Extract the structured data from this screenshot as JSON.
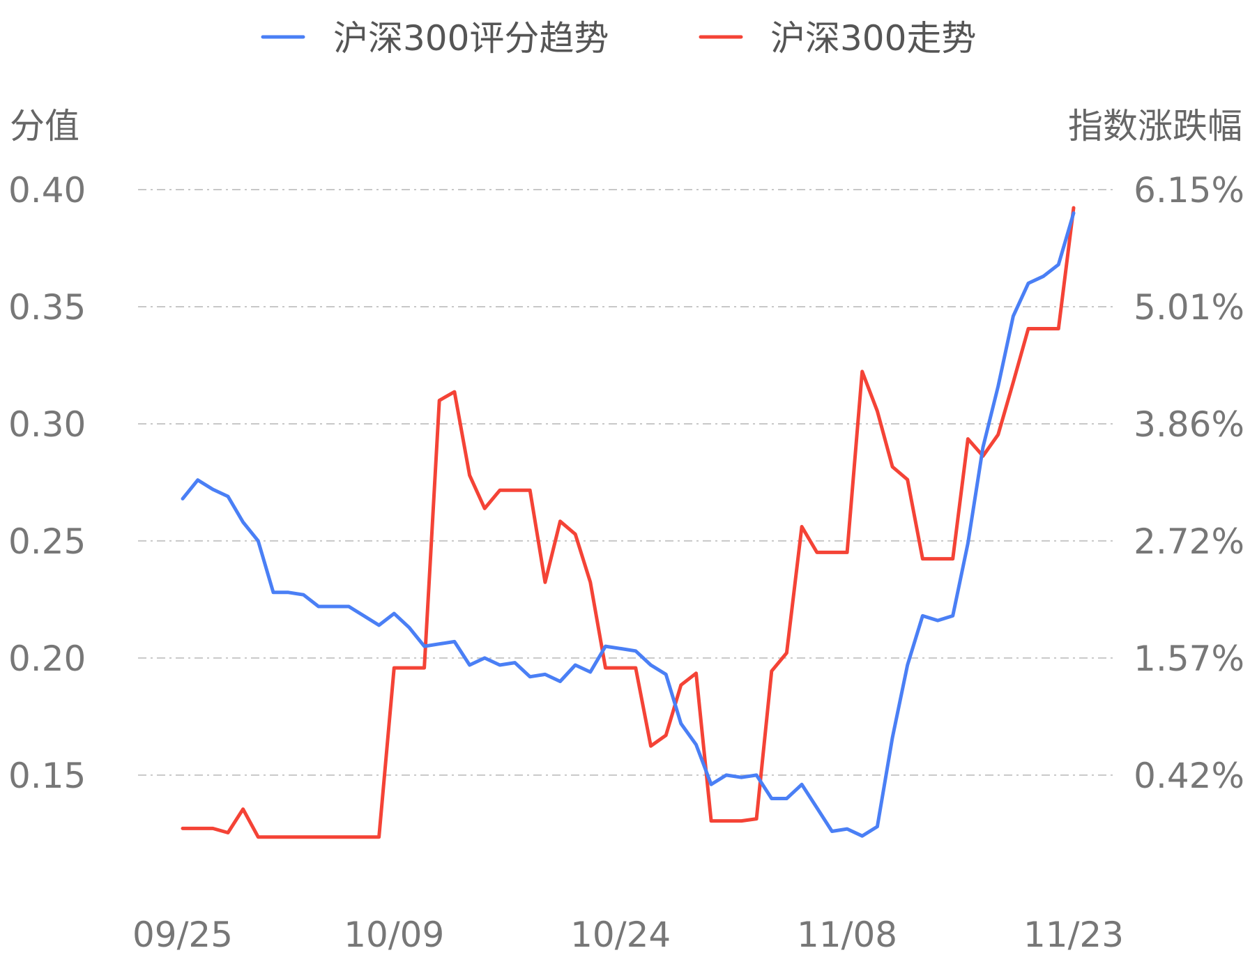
{
  "chart_data": {
    "type": "line",
    "legend": {
      "position": "top"
    },
    "grid": true,
    "series": [
      {
        "name": "沪深300评分趋势",
        "axis": "left",
        "color": "#4a7ff5",
        "values": [
          0.268,
          0.276,
          0.272,
          0.269,
          0.258,
          0.25,
          0.228,
          0.228,
          0.227,
          0.222,
          0.222,
          0.222,
          0.218,
          0.214,
          0.219,
          0.213,
          0.205,
          0.206,
          0.207,
          0.197,
          0.2,
          0.197,
          0.198,
          0.192,
          0.193,
          0.19,
          0.197,
          0.194,
          0.205,
          0.204,
          0.203,
          0.197,
          0.193,
          0.172,
          0.163,
          0.146,
          0.15,
          0.149,
          0.15,
          0.14,
          0.14,
          0.146,
          0.136,
          0.126,
          0.127,
          0.124,
          0.128,
          0.166,
          0.197,
          0.218,
          0.216,
          0.218,
          0.249,
          0.29,
          0.316,
          0.346,
          0.36,
          0.363,
          0.368,
          0.39
        ]
      },
      {
        "name": "沪深300走势",
        "axis": "right",
        "color": "#f44336",
        "values": [
          0.18,
          0.18,
          0.18,
          0.14,
          0.36,
          0.1,
          0.1,
          0.1,
          0.1,
          0.1,
          0.1,
          0.1,
          0.1,
          0.1,
          1.68,
          1.68,
          1.68,
          4.18,
          4.26,
          3.48,
          3.17,
          3.34,
          3.34,
          3.34,
          2.48,
          3.05,
          2.93,
          2.48,
          1.68,
          1.68,
          1.68,
          0.95,
          1.05,
          1.52,
          1.63,
          0.25,
          0.25,
          0.25,
          0.27,
          1.65,
          1.82,
          3.0,
          2.76,
          2.76,
          2.76,
          4.45,
          4.08,
          3.56,
          3.44,
          2.7,
          2.7,
          2.7,
          3.82,
          3.66,
          3.86,
          4.35,
          4.85,
          4.85,
          4.85,
          5.98
        ]
      }
    ],
    "x_ticks": [
      "09/25",
      "10/09",
      "10/24",
      "11/08",
      "11/23"
    ],
    "x_tick_indices": [
      0,
      14,
      29,
      44,
      59
    ],
    "ylabel_left": "分值",
    "ylabel_right": "指数涨跌幅",
    "ylim_left": [
      0.119,
      0.4
    ],
    "yticks_left": [
      "0.40",
      "0.35",
      "0.30",
      "0.25",
      "0.20",
      "0.15"
    ],
    "ytick_values_left": [
      0.4,
      0.35,
      0.3,
      0.25,
      0.2,
      0.15
    ],
    "yticks_right": [
      "6.15%",
      "5.01%",
      "3.86%",
      "2.72%",
      "1.57%",
      "0.42%"
    ],
    "ylim_right": [
      0.0,
      6.15
    ]
  }
}
